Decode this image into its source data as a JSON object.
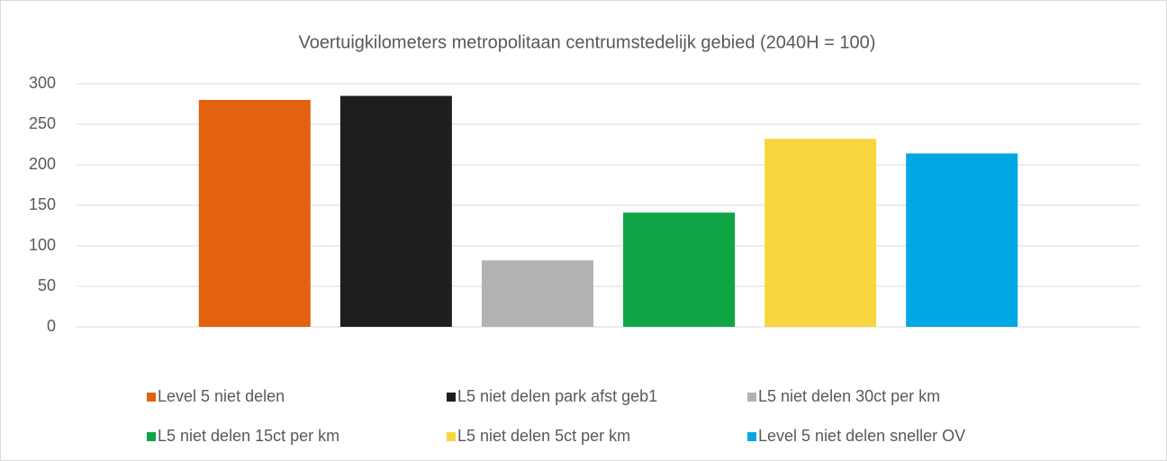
{
  "chart_data": {
    "type": "bar",
    "title": "Voertuigkilometers metropolitaan centrumstedelijk gebied (2040H = 100)",
    "categories": [
      null
    ],
    "series": [
      {
        "name": "Level 5 niet delen",
        "color": "#E2620F",
        "values": [
          280
        ]
      },
      {
        "name": "L5 niet delen park afst geb1",
        "color": "#1E1E1E",
        "values": [
          285
        ]
      },
      {
        "name": "L5 niet delen 30ct per km",
        "color": "#B2B2B2",
        "values": [
          82
        ]
      },
      {
        "name": "L5 niet delen 15ct per km",
        "color": "#10A544",
        "values": [
          141
        ]
      },
      {
        "name": "L5 niet delen 5ct per km",
        "color": "#F7D53E",
        "values": [
          232
        ]
      },
      {
        "name": "Level 5 niet delen sneller OV",
        "color": "#00A7E3",
        "values": [
          214
        ]
      }
    ],
    "ylim": [
      0,
      300
    ],
    "yticks": [
      0,
      50,
      100,
      150,
      200,
      250,
      300
    ],
    "grid": true,
    "legend": "bottom"
  }
}
